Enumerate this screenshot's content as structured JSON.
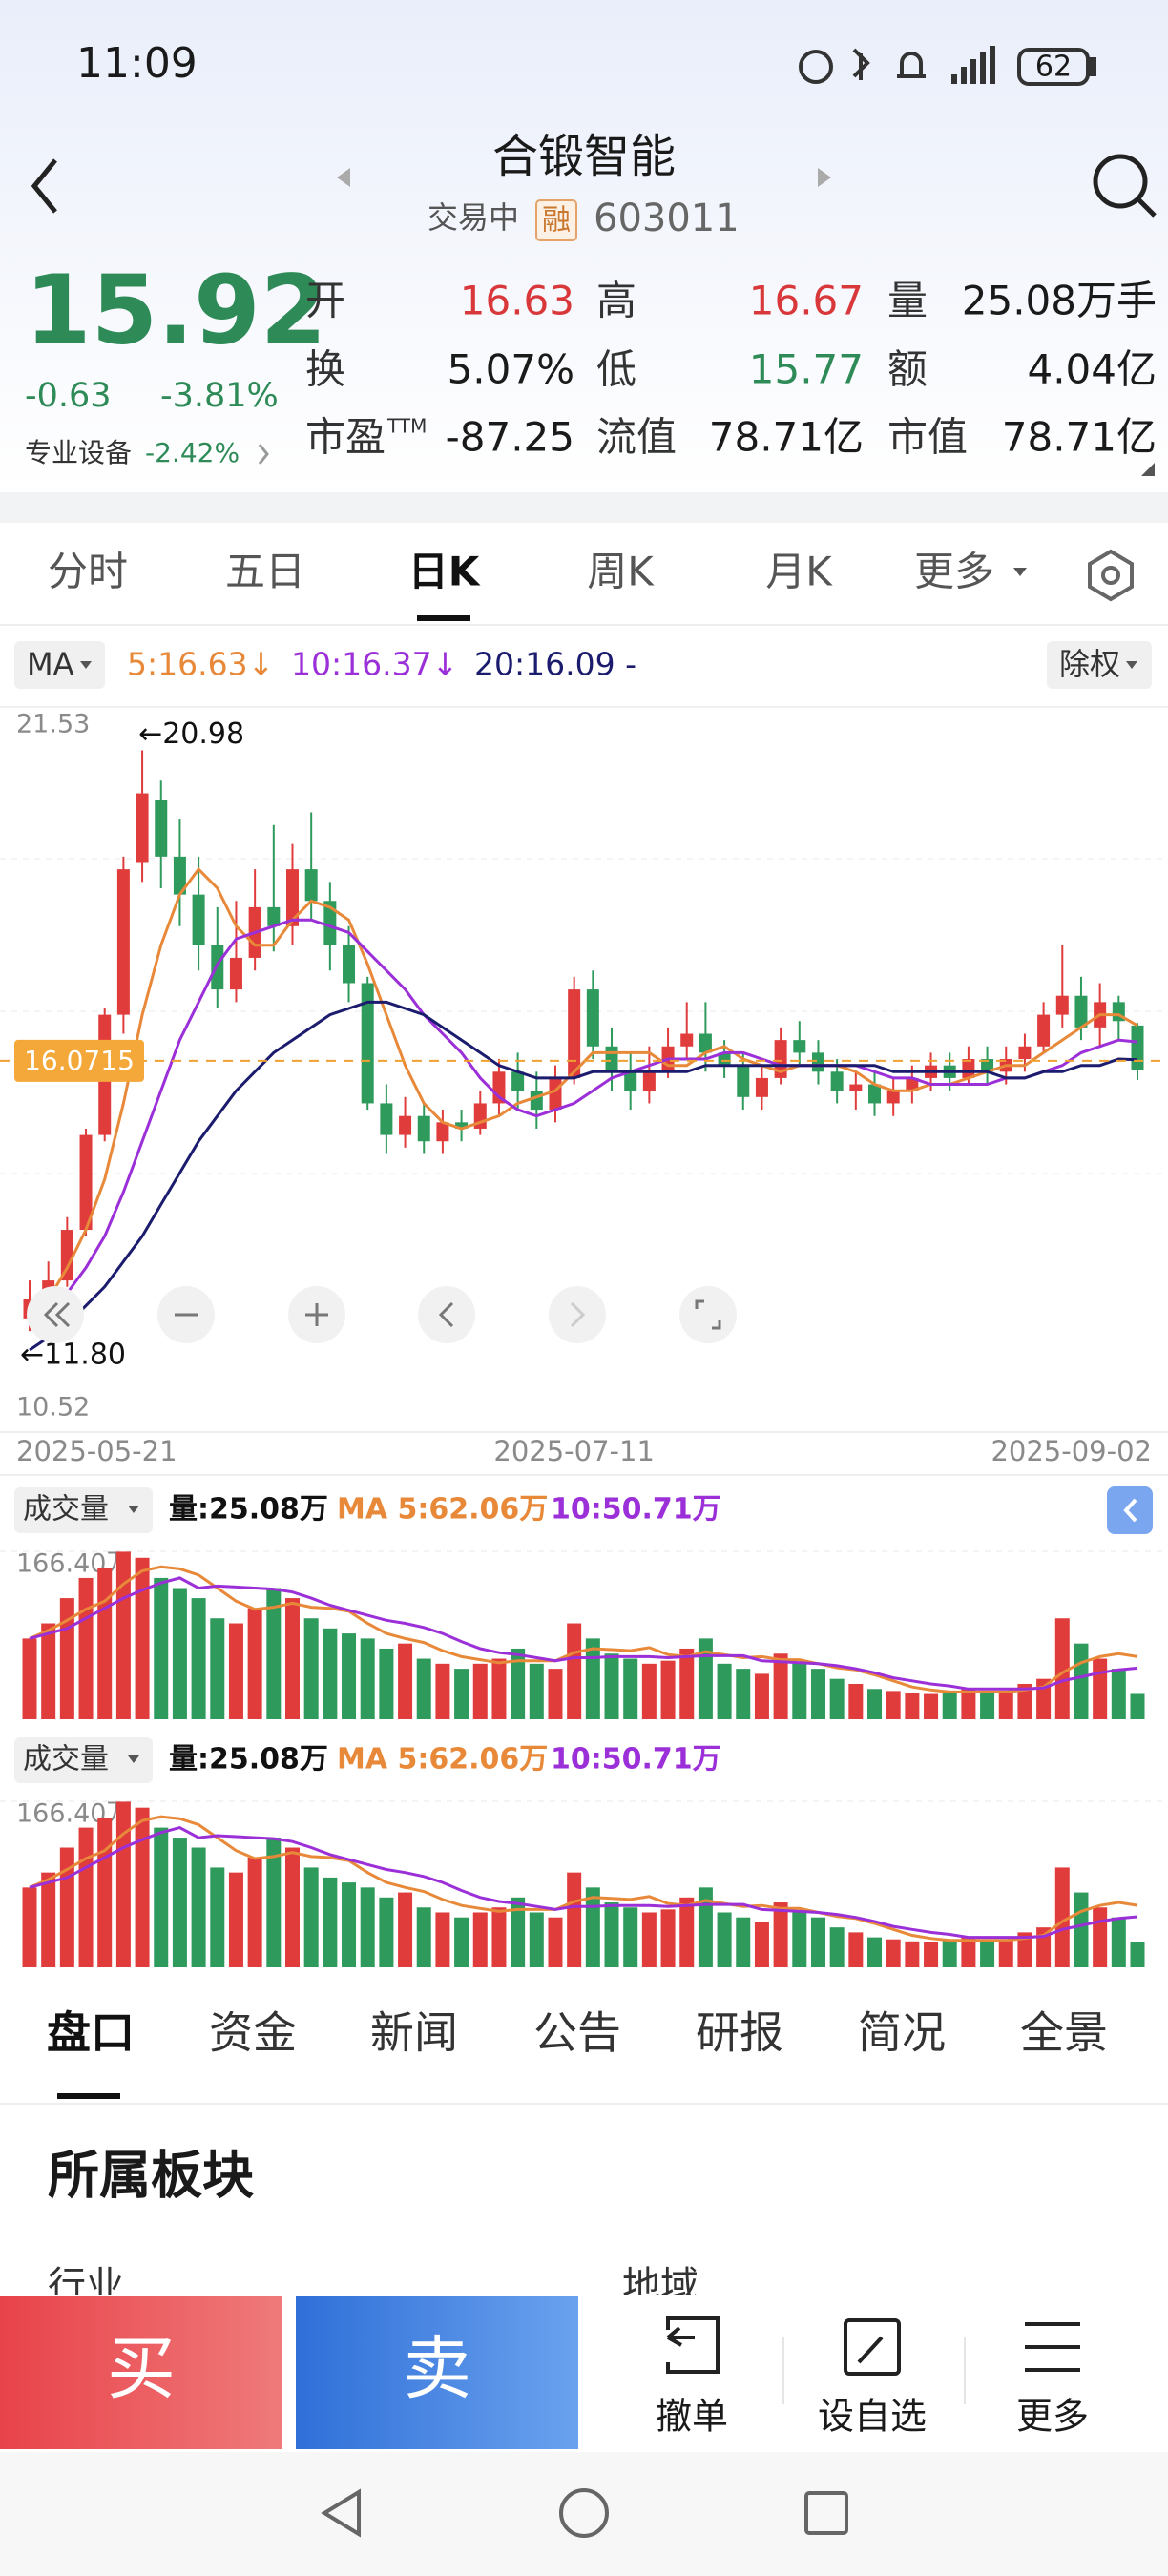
{
  "status": {
    "time": "11:09",
    "battery": "62"
  },
  "header": {
    "name": "合锻智能",
    "state": "交易中",
    "badge": "融",
    "code": "603011"
  },
  "quote": {
    "price": "15.92",
    "change": "-0.63",
    "change_pct": "-3.81%",
    "sector": "专业设备",
    "sector_pct": "-2.42%",
    "stats": [
      [
        "开",
        "16.63"
      ],
      [
        "高",
        "16.67"
      ],
      [
        "量",
        "25.08万手"
      ],
      [
        "换",
        "5.07%"
      ],
      [
        "低",
        "15.77"
      ],
      [
        "额",
        "4.04亿"
      ],
      [
        "市盈",
        "-87.25"
      ],
      [
        "流值",
        "78.71亿"
      ],
      [
        "市值",
        "78.71亿"
      ]
    ],
    "pe_mark": "TTM"
  },
  "tabs": [
    "分时",
    "五日",
    "日K",
    "周K",
    "月K",
    "更多"
  ],
  "ma_label": "MA",
  "fq_label": "除权",
  "chart_data": {
    "type": "candlestick",
    "categories": [
      "2025-05-21",
      null,
      null,
      null,
      null,
      null,
      null,
      null,
      null,
      null,
      null,
      null,
      null,
      null,
      null,
      null,
      null,
      null,
      null,
      null,
      null,
      null,
      null,
      null,
      null,
      null,
      null,
      null,
      null,
      "2025-07-11",
      null,
      null,
      null,
      null,
      null,
      null,
      null,
      null,
      null,
      null,
      null,
      null,
      null,
      null,
      null,
      null,
      null,
      null,
      null,
      null,
      null,
      null,
      null,
      null,
      null,
      null,
      null,
      null,
      null,
      "2025-09-02"
    ],
    "open": [
      12.0,
      12.3,
      12.6,
      13.4,
      14.9,
      16.8,
      19.2,
      20.2,
      19.3,
      18.7,
      17.9,
      17.2,
      17.7,
      18.5,
      18.2,
      19.1,
      18.6,
      17.9,
      17.3,
      15.4,
      14.9,
      15.2,
      14.8,
      15.1,
      15.0,
      15.4,
      15.9,
      15.6,
      15.3,
      15.8,
      17.2,
      16.3,
      15.9,
      15.6,
      15.9,
      16.3,
      16.5,
      16.2,
      16.0,
      15.5,
      15.8,
      16.4,
      16.2,
      15.9,
      15.6,
      15.7,
      15.4,
      15.6,
      15.8,
      16.0,
      15.8,
      16.1,
      15.9,
      16.1,
      16.3,
      16.8,
      17.1,
      16.6,
      17.0,
      16.63
    ],
    "close": [
      12.3,
      12.6,
      13.4,
      14.9,
      16.8,
      19.1,
      20.3,
      19.3,
      18.7,
      17.9,
      17.2,
      17.7,
      18.5,
      18.2,
      19.1,
      18.6,
      17.9,
      17.3,
      15.4,
      14.9,
      15.2,
      14.8,
      15.1,
      15.0,
      15.4,
      15.9,
      15.6,
      15.3,
      15.8,
      17.2,
      16.3,
      15.9,
      15.6,
      15.9,
      16.3,
      16.5,
      16.2,
      16.0,
      15.5,
      15.8,
      16.4,
      16.2,
      15.9,
      15.6,
      15.7,
      15.4,
      15.6,
      15.8,
      16.0,
      15.8,
      16.1,
      15.9,
      16.1,
      16.3,
      16.8,
      17.1,
      16.6,
      17.0,
      16.7,
      15.92
    ],
    "high": [
      12.6,
      12.9,
      13.6,
      15.0,
      16.9,
      19.3,
      20.98,
      20.5,
      19.9,
      19.3,
      18.5,
      18.6,
      19.1,
      19.8,
      19.5,
      20.0,
      18.9,
      18.2,
      17.4,
      15.7,
      15.5,
      15.4,
      15.3,
      15.3,
      15.6,
      16.1,
      16.2,
      15.9,
      16.0,
      17.4,
      17.5,
      16.6,
      16.2,
      16.3,
      16.6,
      17.0,
      17.0,
      16.4,
      16.2,
      16.0,
      16.6,
      16.7,
      16.4,
      16.1,
      15.9,
      15.9,
      15.8,
      16.0,
      16.2,
      16.2,
      16.3,
      16.3,
      16.3,
      16.5,
      17.0,
      17.9,
      17.4,
      17.3,
      17.1,
      16.67
    ],
    "low": [
      11.8,
      12.1,
      12.5,
      13.3,
      14.8,
      16.5,
      18.9,
      18.8,
      18.2,
      17.5,
      16.9,
      17.0,
      17.5,
      17.8,
      17.9,
      18.3,
      17.5,
      17.0,
      15.3,
      14.6,
      14.7,
      14.6,
      14.6,
      14.8,
      14.9,
      15.2,
      15.3,
      15.0,
      15.1,
      15.7,
      16.1,
      15.6,
      15.3,
      15.4,
      15.8,
      16.1,
      15.9,
      15.8,
      15.3,
      15.3,
      15.7,
      16.0,
      15.7,
      15.4,
      15.3,
      15.2,
      15.2,
      15.4,
      15.6,
      15.6,
      15.7,
      15.7,
      15.7,
      15.9,
      16.2,
      16.6,
      16.4,
      16.3,
      16.4,
      15.77
    ],
    "up_color": "#e03c3c",
    "down_color": "#2e9a5c",
    "ylim": [
      10.52,
      21.53
    ],
    "yticks": [
      10.52,
      21.53
    ],
    "high_mark": {
      "value": 20.98,
      "label": "←20.98"
    },
    "low_mark": {
      "value": 11.8,
      "label": "←11.80"
    },
    "current_line": 16.0715,
    "ma_series": [
      {
        "name": "5:16.63↓",
        "color": "#e8893a",
        "values": [
          12.0,
          12.3,
          12.8,
          13.4,
          14.2,
          15.4,
          16.8,
          17.9,
          18.7,
          19.1,
          18.8,
          18.2,
          17.9,
          17.9,
          18.3,
          18.6,
          18.5,
          18.3,
          17.6,
          16.8,
          16.0,
          15.4,
          15.1,
          15.0,
          15.1,
          15.2,
          15.4,
          15.5,
          15.6,
          15.9,
          16.2,
          16.2,
          16.2,
          16.2,
          16.0,
          16.0,
          16.2,
          16.3,
          16.1,
          16.0,
          15.9,
          16.0,
          16.0,
          16.0,
          15.9,
          15.7,
          15.6,
          15.6,
          15.7,
          15.7,
          15.8,
          15.9,
          16.0,
          16.0,
          16.2,
          16.4,
          16.6,
          16.8,
          16.8,
          16.63
        ]
      },
      {
        "name": "10:16.37↓",
        "color": "#9b2fd8",
        "values": [
          11.9,
          12.1,
          12.4,
          12.8,
          13.3,
          14.0,
          14.8,
          15.6,
          16.4,
          17.0,
          17.6,
          18.0,
          18.1,
          18.2,
          18.3,
          18.3,
          18.2,
          18.1,
          17.8,
          17.5,
          17.2,
          16.8,
          16.5,
          16.2,
          15.8,
          15.5,
          15.3,
          15.2,
          15.3,
          15.4,
          15.6,
          15.8,
          15.9,
          16.0,
          16.1,
          16.1,
          16.1,
          16.2,
          16.2,
          16.1,
          16.0,
          16.0,
          16.0,
          16.0,
          16.0,
          15.9,
          15.8,
          15.8,
          15.7,
          15.7,
          15.7,
          15.7,
          15.8,
          15.8,
          15.9,
          16.0,
          16.2,
          16.3,
          16.4,
          16.37
        ]
      },
      {
        "name": "20:16.09 -",
        "color": "#1c1c6e",
        "values": [
          11.5,
          11.7,
          11.9,
          12.2,
          12.5,
          12.9,
          13.3,
          13.8,
          14.3,
          14.8,
          15.2,
          15.6,
          15.9,
          16.2,
          16.4,
          16.6,
          16.8,
          16.9,
          17.0,
          17.0,
          16.9,
          16.8,
          16.6,
          16.4,
          16.2,
          16.0,
          15.9,
          15.8,
          15.8,
          15.8,
          15.9,
          15.9,
          15.9,
          15.9,
          15.9,
          15.9,
          16.0,
          16.0,
          16.0,
          16.0,
          16.0,
          16.0,
          16.0,
          16.0,
          16.0,
          16.0,
          15.9,
          15.9,
          15.9,
          15.9,
          15.9,
          15.9,
          15.8,
          15.8,
          15.9,
          15.9,
          16.0,
          16.0,
          16.1,
          16.09
        ]
      }
    ],
    "volume": {
      "title": "成交量",
      "label": "量:25.08万",
      "values": [
        80,
        95,
        120,
        140,
        150,
        166,
        160,
        140,
        130,
        120,
        100,
        95,
        110,
        130,
        120,
        100,
        90,
        85,
        80,
        70,
        75,
        60,
        55,
        50,
        55,
        60,
        70,
        55,
        50,
        95,
        80,
        65,
        60,
        55,
        58,
        70,
        80,
        55,
        50,
        45,
        65,
        55,
        50,
        40,
        35,
        30,
        28,
        26,
        25,
        28,
        30,
        26,
        28,
        35,
        40,
        100,
        75,
        60,
        50,
        25.08
      ],
      "ylim": [
        0,
        166.4
      ],
      "yticks": [
        {
          "value": 166.4,
          "label": "166.40万"
        }
      ],
      "series": [
        {
          "name": "MA 5:62.06万",
          "color": "#e8893a",
          "values": [
            80,
            88,
            98,
            109,
            117,
            134,
            147,
            151,
            149,
            143,
            130,
            117,
            109,
            111,
            115,
            111,
            110,
            107,
            95,
            85,
            80,
            76,
            68,
            62,
            59,
            56,
            58,
            58,
            58,
            66,
            70,
            69,
            68,
            71,
            64,
            62,
            67,
            64,
            61,
            62,
            59,
            59,
            55,
            51,
            49,
            44,
            38,
            32,
            29,
            27,
            27,
            27,
            27,
            29,
            32,
            46,
            56,
            62,
            65,
            62.06
          ]
        },
        {
          "name": "10:50.71万",
          "color": "#9b2fd8",
          "values": [
            80,
            85,
            90,
            100,
            110,
            120,
            128,
            135,
            140,
            130,
            132,
            131,
            130,
            129,
            126,
            120,
            113,
            108,
            103,
            98,
            95,
            91,
            85,
            77,
            70,
            66,
            64,
            61,
            58,
            61,
            61,
            62,
            62,
            62,
            61,
            62,
            63,
            63,
            63,
            58,
            57,
            56,
            55,
            53,
            50,
            46,
            41,
            38,
            35,
            33,
            30,
            30,
            30,
            30,
            31,
            38,
            42,
            46,
            49,
            50.71
          ]
        }
      ]
    }
  },
  "bottom_tabs": [
    "盘口",
    "资金",
    "新闻",
    "公告",
    "研报",
    "简况",
    "全景"
  ],
  "section": {
    "title": "所属板块",
    "left": "行业",
    "right": "地域"
  },
  "actions": {
    "buy": "买",
    "sell": "卖",
    "cancel": "撤单",
    "watch": "设自选",
    "more": "更多"
  }
}
